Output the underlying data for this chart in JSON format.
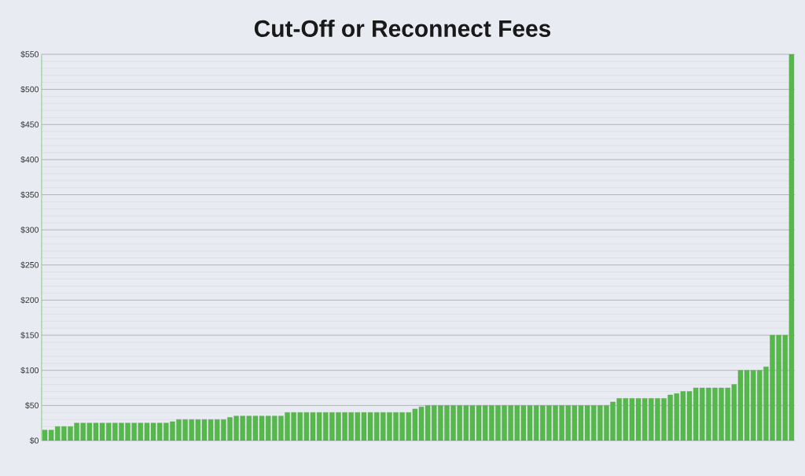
{
  "chart_data": {
    "type": "bar",
    "title": "Cut-Off or Reconnect Fees",
    "categories": [
      null,
      null,
      null,
      null,
      null,
      null,
      null,
      null,
      null,
      null,
      null,
      null,
      null,
      null,
      null,
      null,
      null,
      null,
      null,
      null,
      null,
      null,
      null,
      null,
      null,
      null,
      null,
      null,
      null,
      null,
      null,
      null,
      null,
      null,
      null,
      null,
      null,
      null,
      null,
      null,
      null,
      null,
      null,
      null,
      null,
      null,
      null,
      null,
      null,
      null,
      null,
      null,
      null,
      null,
      null,
      null,
      null,
      null,
      null,
      null,
      null,
      null,
      null,
      null,
      null,
      null,
      null,
      null,
      null,
      null,
      null,
      null,
      null,
      null,
      null,
      null,
      null,
      null,
      null,
      null,
      null,
      null,
      null,
      null,
      null,
      null,
      null,
      null,
      null,
      null,
      null,
      null,
      null,
      null,
      null,
      null,
      null,
      null,
      null,
      null,
      null,
      null,
      null,
      null,
      null,
      null,
      null,
      null,
      null,
      null,
      null,
      null,
      null,
      null,
      null,
      null,
      null,
      null
    ],
    "values": [
      15,
      15,
      20,
      20,
      20,
      25,
      25,
      25,
      25,
      25,
      25,
      25,
      25,
      25,
      25,
      25,
      25,
      25,
      25,
      25,
      27,
      30,
      30,
      30,
      30,
      30,
      30,
      30,
      30,
      33,
      35,
      35,
      35,
      35,
      35,
      35,
      35,
      35,
      40,
      40,
      40,
      40,
      40,
      40,
      40,
      40,
      40,
      40,
      40,
      40,
      40,
      40,
      40,
      40,
      40,
      40,
      40,
      40,
      45,
      48,
      50,
      50,
      50,
      50,
      50,
      50,
      50,
      50,
      50,
      50,
      50,
      50,
      50,
      50,
      50,
      50,
      50,
      50,
      50,
      50,
      50,
      50,
      50,
      50,
      50,
      50,
      50,
      50,
      50,
      55,
      60,
      60,
      60,
      60,
      60,
      60,
      60,
      60,
      65,
      67,
      70,
      70,
      75,
      75,
      75,
      75,
      75,
      75,
      80,
      100,
      100,
      100,
      100,
      105,
      150,
      150,
      150,
      550
    ],
    "color": "#55b84a",
    "ylim": [
      0,
      550
    ],
    "yticks": [
      {
        "value": 0,
        "label": "$0"
      },
      {
        "value": 50,
        "label": "$50"
      },
      {
        "value": 100,
        "label": "$100"
      },
      {
        "value": 150,
        "label": "$150"
      },
      {
        "value": 200,
        "label": "$200"
      },
      {
        "value": 250,
        "label": "$250"
      },
      {
        "value": 300,
        "label": "$300"
      },
      {
        "value": 350,
        "label": "$350"
      },
      {
        "value": 400,
        "label": "$400"
      },
      {
        "value": 450,
        "label": "$450"
      },
      {
        "value": 500,
        "label": "$500"
      },
      {
        "value": 550,
        "label": "$550"
      }
    ],
    "grid": "y"
  }
}
